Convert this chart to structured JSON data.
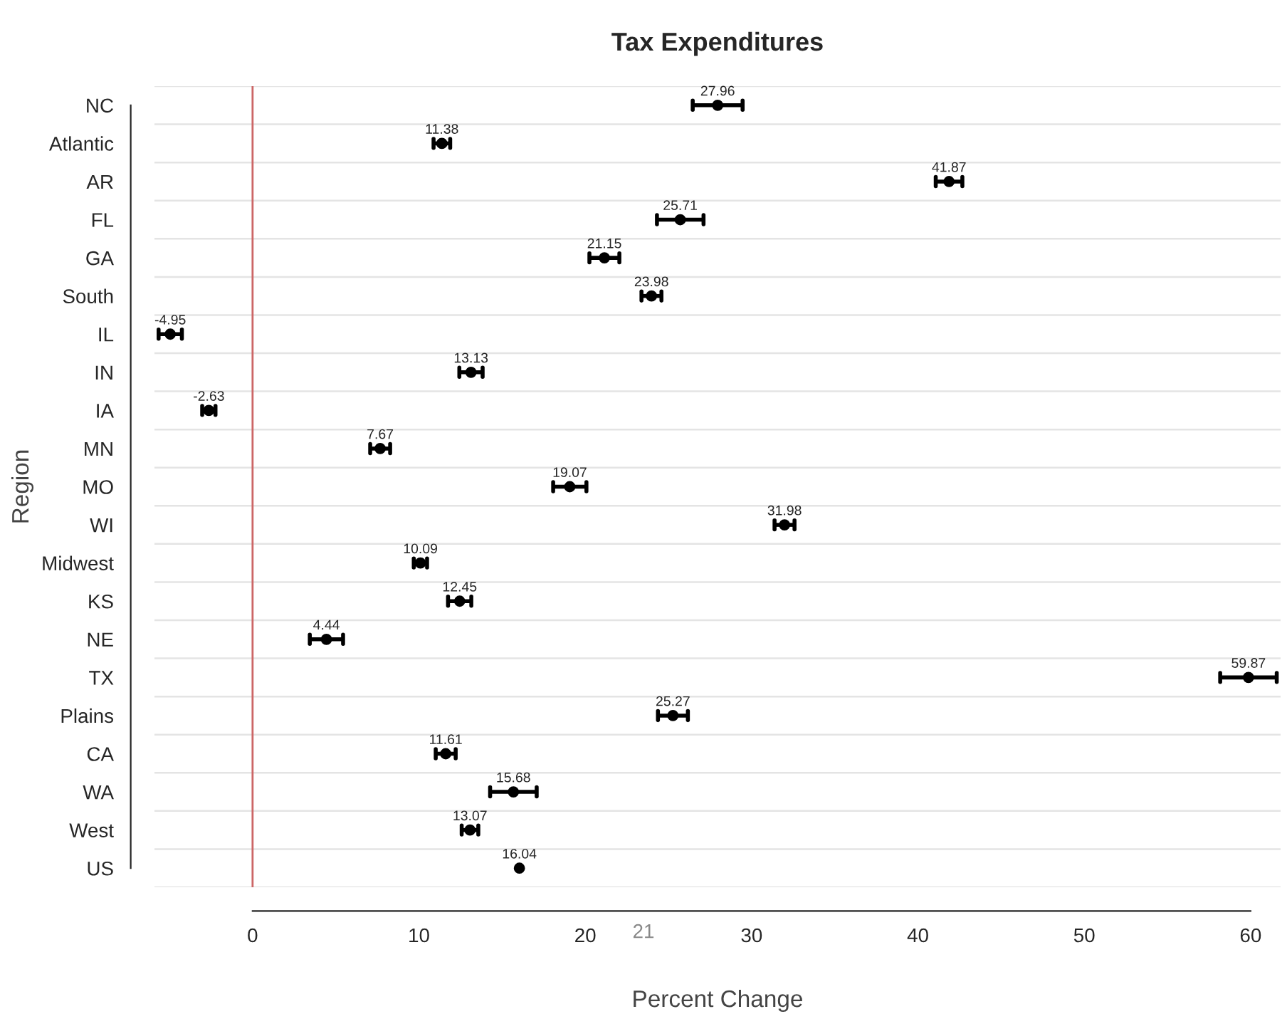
{
  "chart_data": {
    "type": "scatter",
    "title": "Tax Expenditures",
    "xlabel": "Percent Change",
    "ylabel": "Region",
    "orientation": "horizontal",
    "categories": [
      "NC",
      "Atlantic",
      "AR",
      "FL",
      "GA",
      "South",
      "IL",
      "IN",
      "IA",
      "MN",
      "MO",
      "WI",
      "Midwest",
      "KS",
      "NE",
      "TX",
      "Plains",
      "CA",
      "WA",
      "West",
      "US"
    ],
    "series": [
      {
        "color": "#000000",
        "values": [
          27.96,
          11.38,
          41.87,
          25.71,
          21.15,
          23.98,
          -4.95,
          13.13,
          -2.63,
          7.67,
          19.07,
          31.98,
          10.09,
          12.45,
          4.44,
          59.87,
          25.27,
          11.61,
          15.68,
          13.07,
          16.04
        ],
        "errors": [
          1.5,
          0.5,
          0.8,
          1.4,
          0.9,
          0.6,
          0.7,
          0.7,
          0.4,
          0.6,
          1.0,
          0.6,
          0.4,
          0.7,
          1.0,
          1.7,
          0.9,
          0.6,
          1.4,
          0.5,
          null
        ]
      }
    ],
    "xlim": [
      -5.9,
      61.8
    ],
    "xticks": [
      0,
      10,
      20,
      30,
      40,
      50,
      60
    ],
    "ref_lines": [
      {
        "axis": "x",
        "value": 0,
        "color": "#cc6666"
      }
    ],
    "data_labels": true,
    "grid": "y",
    "marker": "circle",
    "annotations": [
      "21"
    ]
  }
}
